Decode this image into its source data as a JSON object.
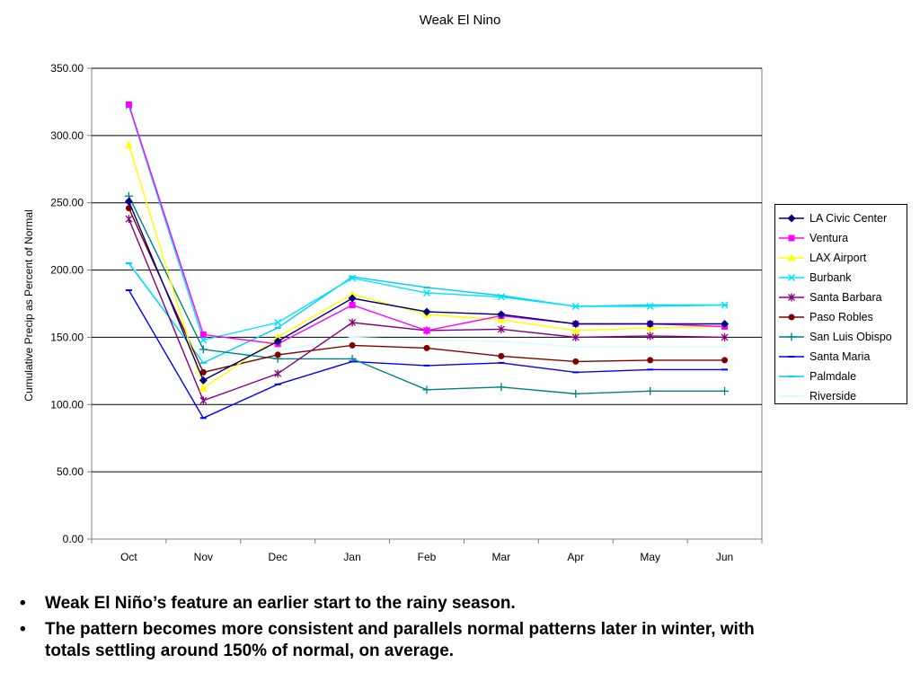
{
  "chart_data": {
    "type": "line",
    "title": "Weak El Nino",
    "xlabel": "",
    "ylabel": "Cumulative Precip as Percent of Normal",
    "categories": [
      "Oct",
      "Nov",
      "Dec",
      "Jan",
      "Feb",
      "Mar",
      "Apr",
      "May",
      "Jun"
    ],
    "ylim": [
      0,
      350
    ],
    "yticks": [
      "0.00",
      "50.00",
      "100.00",
      "150.00",
      "200.00",
      "250.00",
      "300.00",
      "350.00"
    ],
    "grid": true,
    "legend_position": "right",
    "series": [
      {
        "name": "LA Civic Center",
        "color": "#000080",
        "marker": "diamond",
        "values": [
          251,
          118,
          147,
          179,
          169,
          167,
          160,
          160,
          160
        ]
      },
      {
        "name": "Ventura",
        "color": "#FF00FF",
        "marker": "square",
        "values": [
          323,
          152,
          145,
          174,
          155,
          166,
          160,
          160,
          158
        ]
      },
      {
        "name": "LAX Airport",
        "color": "#FFFF00",
        "marker": "triangle",
        "values": [
          293,
          112,
          150,
          182,
          167,
          163,
          155,
          157,
          158
        ]
      },
      {
        "name": "Burbank",
        "color": "#00E5FF",
        "marker": "x",
        "values": [
          322,
          148,
          161,
          194,
          183,
          180,
          173,
          173,
          174
        ]
      },
      {
        "name": "Santa Barbara",
        "color": "#800080",
        "marker": "star",
        "values": [
          238,
          103,
          123,
          161,
          155,
          156,
          150,
          151,
          150
        ]
      },
      {
        "name": "Paso Robles",
        "color": "#800000",
        "marker": "circle",
        "values": [
          246,
          124,
          137,
          144,
          142,
          136,
          132,
          133,
          133
        ]
      },
      {
        "name": "San Luis Obispo",
        "color": "#008080",
        "marker": "plus",
        "values": [
          255,
          141,
          134,
          134,
          111,
          113,
          108,
          110,
          110
        ]
      },
      {
        "name": "Santa Maria",
        "color": "#0000FF",
        "marker": "dash",
        "values": [
          185,
          90,
          115,
          132,
          129,
          131,
          124,
          126,
          126
        ]
      },
      {
        "name": "Palmdale",
        "color": "#00CCFF",
        "marker": "dash",
        "values": [
          205,
          131,
          157,
          195,
          187,
          181,
          173,
          174,
          174
        ]
      },
      {
        "name": "Riverside",
        "color": "#CCFFFF",
        "marker": "dash",
        "values": [
          206,
          135,
          140,
          150,
          148,
          147,
          143,
          143,
          143
        ]
      }
    ]
  },
  "bullets": [
    "Weak El Niño’s feature an earlier start to the rainy season.",
    "The pattern becomes more consistent and parallels normal patterns later in winter, with totals settling around 150% of normal, on average."
  ]
}
